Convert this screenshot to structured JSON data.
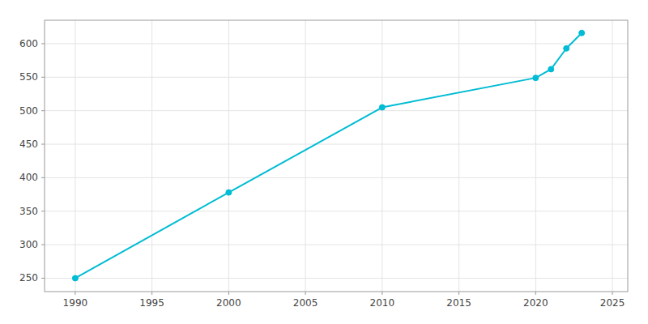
{
  "chart_data": {
    "type": "line",
    "x": [
      1990,
      2000,
      2010,
      2020,
      2021,
      2022,
      2023
    ],
    "values": [
      250,
      378,
      505,
      549,
      562,
      593,
      616
    ],
    "color": "#00BCD4",
    "marker": "circle",
    "xlim": [
      1988,
      2026
    ],
    "ylim": [
      230,
      635
    ],
    "xticks": [
      1990,
      1995,
      2000,
      2005,
      2010,
      2015,
      2020,
      2025
    ],
    "yticks": [
      250,
      300,
      350,
      400,
      450,
      500,
      550,
      600
    ],
    "grid": true
  }
}
